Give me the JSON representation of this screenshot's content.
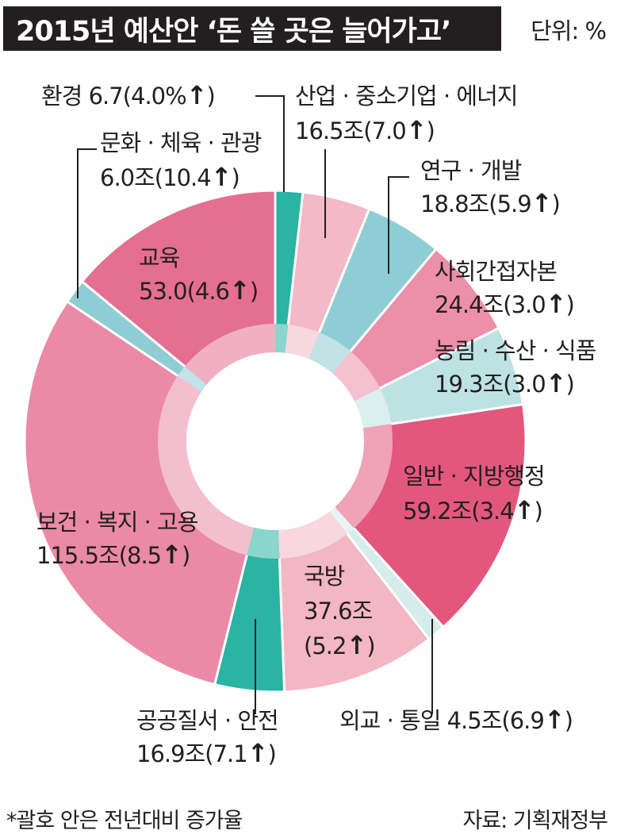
{
  "header": {
    "title": "2015년 예산안 ‘돈 쓸 곳은 늘어가고’",
    "unit": "단위: %"
  },
  "chart_data": {
    "type": "pie",
    "title": "2015년 예산안 ‘돈 쓸 곳은 늘어가고’",
    "unit": "단위: %",
    "categories": [
      "환경",
      "산업·중소기업·에너지",
      "연구·개발",
      "사회간접자본",
      "농림·수산·식품",
      "일반·지방행정",
      "외교·통일",
      "국방",
      "공공질서·안전",
      "보건·복지·고용",
      "문화·체육·관광",
      "교육"
    ],
    "values": [
      6.7,
      16.5,
      18.8,
      24.4,
      19.3,
      59.2,
      4.5,
      37.6,
      16.9,
      115.5,
      6.0,
      53.0
    ],
    "growth_rates": [
      4.0,
      7.0,
      5.9,
      3.0,
      3.0,
      3.4,
      6.9,
      5.2,
      7.1,
      8.5,
      10.4,
      4.6
    ],
    "colors": [
      "#2bb3a3",
      "#f3b9c6",
      "#8fcdd4",
      "#ec8fa9",
      "#bde2e3",
      "#e3577d",
      "#d4ecec",
      "#f3b6c3",
      "#2bb3a3",
      "#ea8aa6",
      "#8fcdd4",
      "#e56f90"
    ],
    "labels": [
      {
        "lines": [
          "환경 6.7(4.0%",
          "↑",
          ")"
        ]
      },
      {
        "lines": [
          "산업 · 중소기업 · 에너지",
          "16.5조(7.0",
          "↑",
          ")"
        ]
      },
      {
        "lines": [
          "연구 · 개발",
          "18.8조(5.9",
          "↑",
          ")"
        ]
      },
      {
        "lines": [
          "사회간접자본",
          "24.4조(3.0",
          "↑",
          ")"
        ]
      },
      {
        "lines": [
          "농림 · 수산 · 식품",
          "19.3조(3.0",
          "↑",
          ")"
        ]
      },
      {
        "lines": [
          "일반 · 지방행정",
          "59.2조(3.4",
          "↑",
          ")"
        ]
      },
      {
        "lines": [
          "외교 · 통일  4.5조(6.9",
          "↑",
          ")"
        ]
      },
      {
        "lines": [
          "국방",
          "37.6조",
          "(5.2",
          "↑",
          ")"
        ]
      },
      {
        "lines": [
          "공공질서 · 안전",
          "16.9조(7.1",
          "↑",
          ")"
        ]
      },
      {
        "lines": [
          "보건 · 복지 · 고용",
          "115.5조(8.5",
          "↑",
          ")"
        ]
      },
      {
        "lines": [
          "문화 · 체육 · 관광",
          "6.0조(10.4",
          "↑",
          ")"
        ]
      },
      {
        "lines": [
          "교육",
          "53.0(4.6",
          "↑",
          ")"
        ]
      }
    ]
  },
  "footer": {
    "note": "*괄호 안은 전년대비 증가율",
    "source": "자료: 기획재정부"
  }
}
